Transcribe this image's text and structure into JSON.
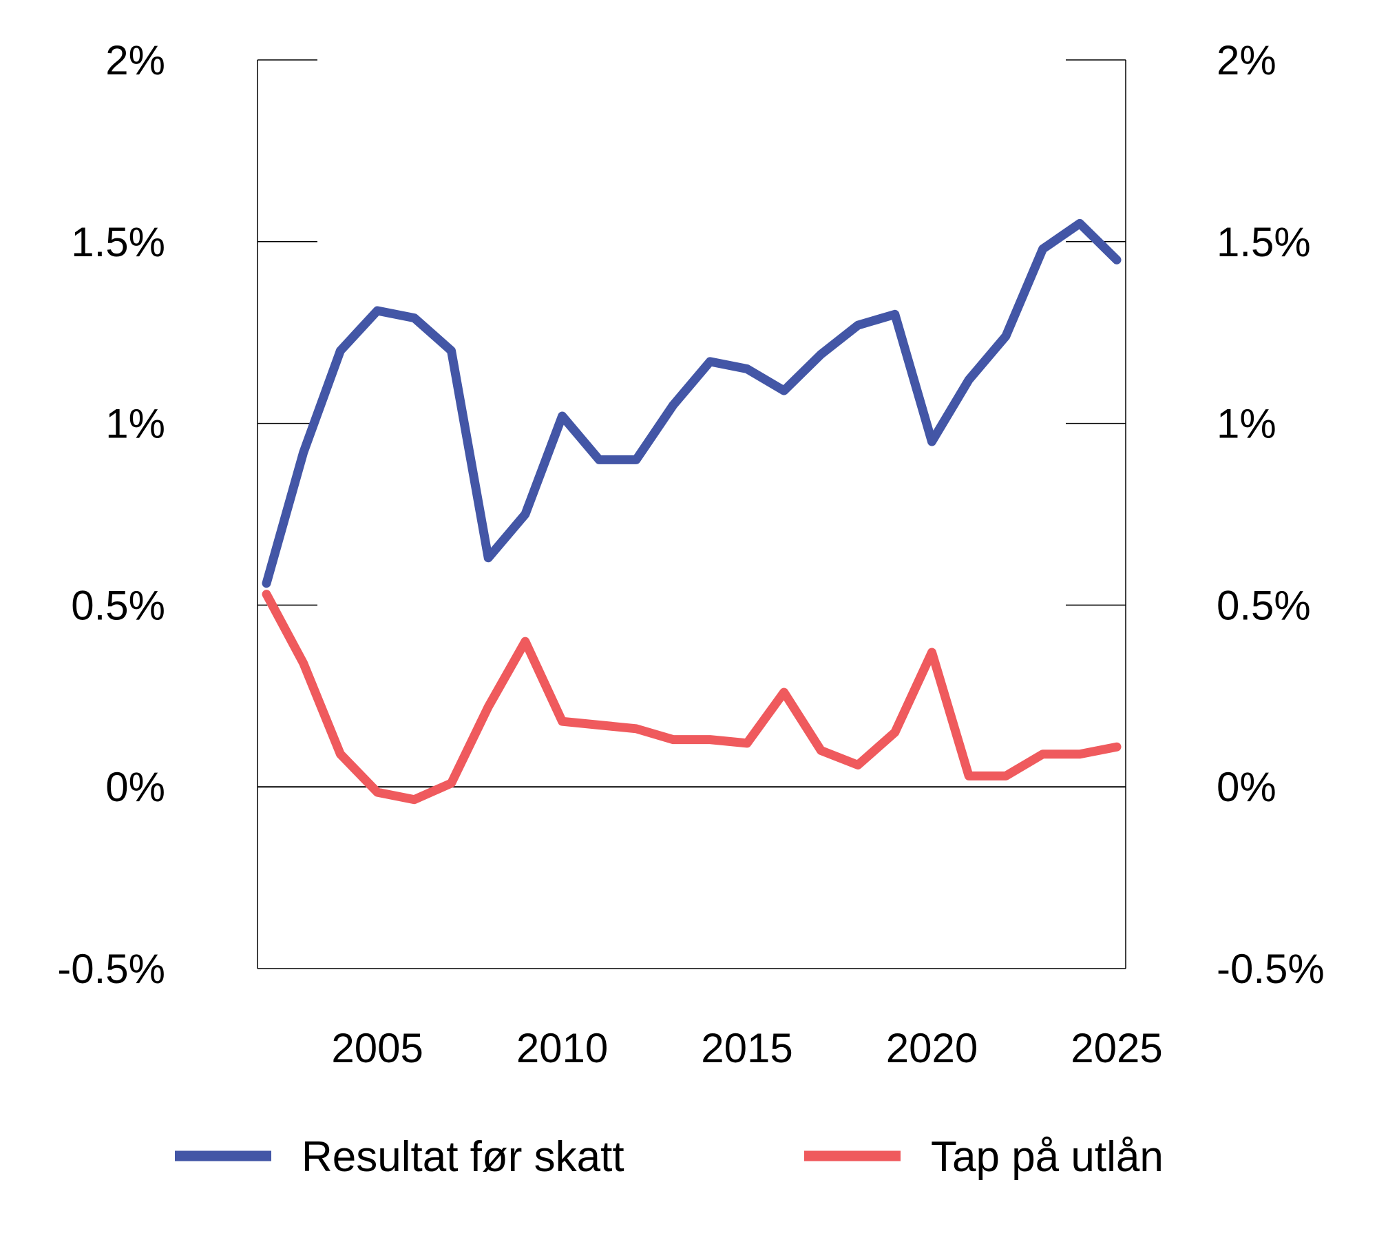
{
  "chart_data": {
    "type": "line",
    "title": "",
    "xlabel": "",
    "ylabel": "",
    "x": [
      2002,
      2003,
      2004,
      2005,
      2006,
      2007,
      2008,
      2009,
      2010,
      2011,
      2012,
      2013,
      2014,
      2015,
      2016,
      2017,
      2018,
      2019,
      2020,
      2021,
      2022,
      2023,
      2024,
      2025
    ],
    "xlim": [
      2002,
      2025
    ],
    "ylim": [
      -0.5,
      2
    ],
    "x_ticks": [
      2005,
      2010,
      2015,
      2020,
      2025
    ],
    "x_tick_labels": [
      "2005",
      "2010",
      "2015",
      "2020",
      "2025"
    ],
    "y_ticks": [
      -0.5,
      0,
      0.5,
      1,
      1.5,
      2
    ],
    "y_tick_labels": [
      "-0.5%",
      "0%",
      "0.5%",
      "1%",
      "1.5%",
      "2%"
    ],
    "secondary_y_tick_labels": [
      "-0.5%",
      "0%",
      "0.5%",
      "1%",
      "1.5%",
      "2%"
    ],
    "grid": false,
    "legend_position": "bottom",
    "series": [
      {
        "name": "Resultat før skatt",
        "color": "#4356a6",
        "values": [
          0.56,
          0.92,
          1.2,
          1.31,
          1.29,
          1.2,
          0.63,
          0.75,
          1.02,
          0.9,
          0.9,
          1.05,
          1.17,
          1.15,
          1.09,
          1.19,
          1.27,
          1.3,
          0.95,
          1.12,
          1.24,
          1.48,
          1.55,
          1.45
        ]
      },
      {
        "name": "Tap på utlån",
        "color": "#ef5a5d",
        "values": [
          0.53,
          0.34,
          0.09,
          -0.015,
          -0.035,
          0.01,
          0.22,
          0.4,
          0.18,
          0.17,
          0.16,
          0.13,
          0.13,
          0.12,
          0.26,
          0.1,
          0.06,
          0.15,
          0.37,
          0.03,
          0.03,
          0.09,
          0.09,
          0.11
        ]
      }
    ]
  }
}
